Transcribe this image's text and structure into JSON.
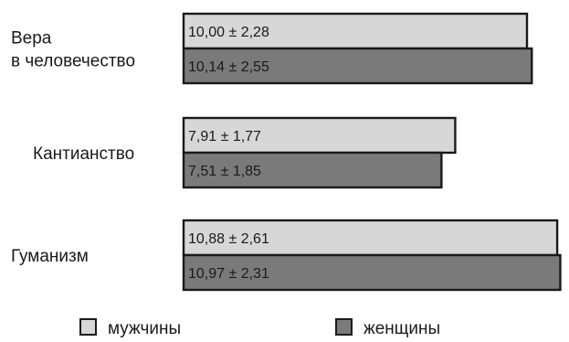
{
  "chart_data": {
    "type": "bar",
    "orientation": "horizontal",
    "categories": [
      [
        "Вера",
        "в человечество"
      ],
      [
        "Кантианство"
      ],
      [
        "Гуманизм"
      ]
    ],
    "series": [
      {
        "name": "мужчины",
        "color": "#d7d7d7",
        "values": [
          10.0,
          7.91,
          10.88
        ],
        "labels": [
          "10,00 ± 2,28",
          "7,91 ± 1,77",
          "10,88 ± 2,61"
        ]
      },
      {
        "name": "женщины",
        "color": "#7a7a7a",
        "values": [
          10.14,
          7.51,
          10.97
        ],
        "labels": [
          "10,14 ± 2,55",
          "7,51 ± 1,85",
          "10,97 ± 2,31"
        ]
      }
    ],
    "xlim": [
      0,
      11
    ],
    "axes_visible": false,
    "grid": false,
    "legend_position": "bottom"
  }
}
